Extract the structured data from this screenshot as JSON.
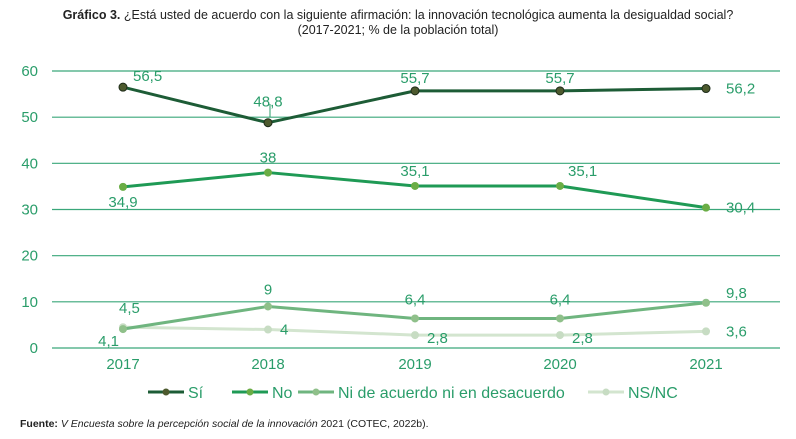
{
  "title": {
    "label": "Gráfico 3.",
    "text": "¿Está usted de acuerdo con la siguiente afirmación: la innovación tecnológica aumenta la desigualdad social?",
    "subtitle": "(2017-2021; % de la población total)"
  },
  "source": {
    "label": "Fuente:",
    "italic": "V Encuesta sobre la percepción social de la innovación",
    "rest": " 2021 (COTEC, 2022b)."
  },
  "colors": {
    "text": "#2a9d6a",
    "grid": "#3aa77a",
    "si": "#1d5c36",
    "si_marker": "#4d5a2e",
    "no": "#1f9a55",
    "no_marker": "#6aad45",
    "ni": "#6fb57f",
    "ni_marker": "#8fc08a",
    "nsnc": "#d3e5cf",
    "nsnc_marker": "#c7dcc3"
  },
  "chart_data": {
    "type": "line",
    "title": "¿Está usted de acuerdo con la siguiente afirmación: la innovación tecnológica aumenta la desigualdad social?",
    "subtitle": "(2017-2021; % de la población total)",
    "xlabel": "",
    "ylabel": "",
    "categories": [
      "2017",
      "2018",
      "2019",
      "2020",
      "2021"
    ],
    "ylim": [
      0,
      60
    ],
    "yticks": [
      "0",
      "10",
      "20",
      "30",
      "40",
      "50",
      "60"
    ],
    "grid": true,
    "legend_position": "bottom",
    "series": [
      {
        "name": "Sí",
        "key": "si",
        "values": [
          56.5,
          48.8,
          55.7,
          55.7,
          56.2
        ],
        "labels": [
          "56,5",
          "48,8",
          "55,7",
          "55,7",
          "56,2"
        ]
      },
      {
        "name": "No",
        "key": "no",
        "values": [
          34.9,
          38,
          35.1,
          35.1,
          30.4
        ],
        "labels": [
          "34,9",
          "38",
          "35,1",
          "35,1",
          "30,4"
        ]
      },
      {
        "name": "Ni de acuerdo ni en desacuerdo",
        "key": "ni",
        "values": [
          4.1,
          9,
          6.4,
          6.4,
          9.8
        ],
        "labels": [
          "4,1",
          "9",
          "6,4",
          "6,4",
          "9,8"
        ]
      },
      {
        "name": "NS/NC",
        "key": "nsnc",
        "values": [
          4.5,
          4,
          2.8,
          2.8,
          3.6
        ],
        "labels": [
          "4,5",
          "4",
          "2,8",
          "2,8",
          "3,6"
        ]
      }
    ]
  }
}
